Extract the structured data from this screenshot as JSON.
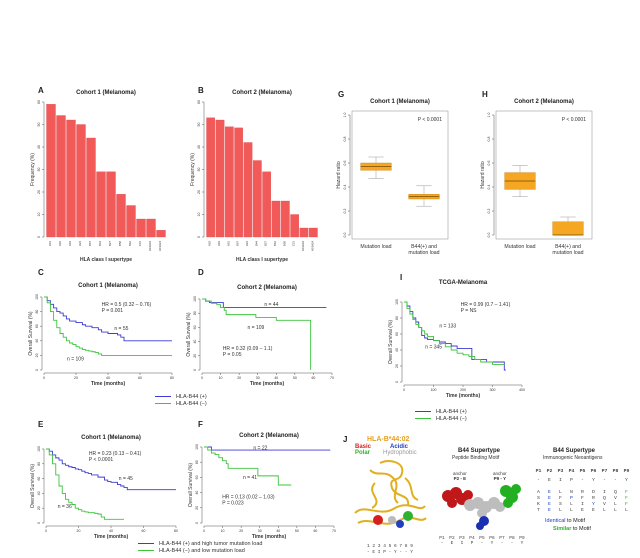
{
  "chart_data": [
    {
      "id": "A",
      "type": "bar",
      "title": "Cohort 1 (Melanoma)",
      "xlabel": "HLA class I supertype",
      "ylabel": "Frequency (%)",
      "ylim": [
        0,
        60
      ],
      "yticks": [
        0,
        10,
        20,
        30,
        40,
        50,
        60
      ],
      "categories": [
        "A01",
        "A02",
        "A03",
        "A24",
        "B07",
        "B44",
        "B27",
        "B58",
        "B62",
        "C01",
        "A01A03",
        "A01A24"
      ],
      "values": [
        59,
        54,
        52,
        50,
        44,
        29,
        29,
        19,
        14,
        8,
        8,
        3
      ],
      "color": "#f25a5a"
    },
    {
      "id": "B",
      "type": "bar",
      "title": "Cohort 2 (Melanoma)",
      "xlabel": "HLA class I supertype",
      "ylabel": "Frequency (%)",
      "ylim": [
        0,
        60
      ],
      "yticks": [
        0,
        10,
        20,
        30,
        40,
        50,
        60
      ],
      "categories": [
        "A02",
        "A03",
        "A01",
        "B07",
        "A24",
        "B44",
        "B27",
        "B62",
        "B58",
        "C01",
        "A01A03",
        "A01A24"
      ],
      "values": [
        53,
        52,
        49,
        48.5,
        42,
        34,
        29,
        16,
        16,
        10,
        4,
        4
      ],
      "color": "#f25a5a"
    },
    {
      "id": "G",
      "type": "box",
      "title": "Cohort 1 (Melanoma)",
      "ylabel": "Hazard ratio",
      "ylim": [
        0,
        1
      ],
      "yticks": [
        0,
        0.2,
        0.4,
        0.6,
        0.8,
        1.0
      ],
      "annotation": "P < 0.0001",
      "categories": [
        "Mutation load",
        "B44(+) and\nmutation load"
      ],
      "boxes": [
        {
          "min": 0.47,
          "q1": 0.54,
          "median": 0.57,
          "q3": 0.6,
          "max": 0.65
        },
        {
          "min": 0.24,
          "q1": 0.3,
          "median": 0.32,
          "q3": 0.34,
          "max": 0.41
        }
      ],
      "color": "#f5a623"
    },
    {
      "id": "H",
      "type": "box",
      "title": "Cohort 2 (Melanoma)",
      "ylabel": "Hazard ratio",
      "ylim": [
        0,
        1
      ],
      "yticks": [
        0,
        0.2,
        0.4,
        0.6,
        0.8,
        1.0
      ],
      "annotation": "P < 0.0001",
      "categories": [
        "Mutation load",
        "B44(+) and\nmutation load"
      ],
      "boxes": [
        {
          "min": 0.32,
          "q1": 0.38,
          "median": 0.45,
          "q3": 0.52,
          "max": 0.58
        },
        {
          "min": 0.0,
          "q1": 0.0,
          "median": 0.0,
          "q3": 0.11,
          "max": 0.15
        }
      ],
      "color": "#f5a623"
    },
    {
      "id": "C",
      "type": "line",
      "title": "Cohort 1 (Melanoma)",
      "xlabel": "Time (months)",
      "ylabel": "Overall Survival (%)",
      "xlim": [
        0,
        80
      ],
      "xticks": [
        0,
        20,
        40,
        60,
        80
      ],
      "ylim": [
        0,
        100
      ],
      "yticks": [
        0,
        20,
        40,
        60,
        80,
        100
      ],
      "annotations": [
        "HR = 0.5 (0.32 – 0.76)",
        "P = 0.001"
      ],
      "series": [
        {
          "name": "HLA-B44 (+)",
          "color": "#3b3bd6",
          "label": "n = 55",
          "x": [
            0,
            2,
            4,
            6,
            8,
            10,
            12,
            14,
            16,
            18,
            20,
            22,
            24,
            26,
            28,
            30,
            32,
            34,
            36,
            38,
            40,
            42,
            44,
            46,
            48,
            50,
            80
          ],
          "y": [
            100,
            95,
            90,
            85,
            80,
            78,
            74,
            70,
            67,
            67,
            65,
            65,
            62,
            60,
            60,
            58,
            58,
            55,
            52,
            52,
            50,
            50,
            50,
            48,
            45,
            40,
            40
          ]
        },
        {
          "name": "HLA-B44 (−)",
          "color": "#3ec43e",
          "label": "n = 109",
          "x": [
            0,
            2,
            4,
            6,
            8,
            10,
            12,
            14,
            16,
            18,
            20,
            22,
            24,
            26,
            28,
            30,
            32,
            34,
            36,
            80
          ],
          "y": [
            100,
            92,
            80,
            68,
            58,
            50,
            45,
            40,
            37,
            35,
            32,
            30,
            28,
            27,
            26,
            25,
            24,
            22,
            20,
            20
          ]
        }
      ]
    },
    {
      "id": "D",
      "type": "line",
      "title": "Cohort 2 (Melanoma)",
      "xlabel": "Time (months)",
      "ylabel": "Overall Survival (%)",
      "xlim": [
        0,
        70
      ],
      "xticks": [
        0,
        10,
        20,
        30,
        40,
        50,
        60,
        70
      ],
      "ylim": [
        0,
        100
      ],
      "yticks": [
        0,
        20,
        40,
        60,
        80,
        100
      ],
      "annotations": [
        "HR = 0.32 (0.09 – 1.1)",
        "P = 0.05"
      ],
      "series": [
        {
          "name": "HLA-B44 (+)",
          "color": "#3b3bd6",
          "label": "n = 44",
          "x": [
            0,
            2,
            4,
            11,
            11.5,
            67
          ],
          "y": [
            100,
            97,
            95,
            95,
            88,
            88
          ]
        },
        {
          "name": "HLA-B44 (−)",
          "color": "#3ec43e",
          "label": "n = 109",
          "x": [
            0,
            2,
            5,
            8,
            10,
            12,
            13,
            28,
            29,
            39,
            40,
            58,
            58.5
          ],
          "y": [
            100,
            97,
            94,
            92,
            88,
            84,
            78,
            78,
            74,
            74,
            70,
            70,
            0
          ]
        }
      ]
    },
    {
      "id": "I",
      "type": "line",
      "title": "TCGA-Melanoma",
      "xlabel": "Time (months)",
      "ylabel": "Overall Survival (%)",
      "xlim": [
        0,
        400
      ],
      "xticks": [
        0,
        100,
        200,
        300,
        400
      ],
      "ylim": [
        0,
        100
      ],
      "yticks": [
        0,
        20,
        40,
        60,
        80,
        100
      ],
      "annotations": [
        "HR = 0.99 (0.7 – 1.41)",
        "P = NS"
      ],
      "series": [
        {
          "name": "HLA-B44 (+)",
          "color": "#3b3bd6",
          "label": "n = 133",
          "x": [
            0,
            10,
            20,
            30,
            40,
            50,
            60,
            70,
            80,
            100,
            120,
            140,
            160,
            180,
            200,
            210,
            230,
            250,
            280,
            300,
            340,
            345
          ],
          "y": [
            100,
            95,
            88,
            80,
            75,
            68,
            58,
            55,
            53,
            52,
            50,
            48,
            45,
            42,
            42,
            42,
            28,
            28,
            25,
            25,
            15,
            15
          ]
        },
        {
          "name": "HLA-B44 (−)",
          "color": "#3ec43e",
          "label": "n = 345",
          "x": [
            0,
            10,
            20,
            30,
            40,
            50,
            60,
            70,
            80,
            100,
            120,
            140,
            160,
            180,
            200,
            220,
            240,
            260,
            300,
            340
          ],
          "y": [
            100,
            92,
            85,
            78,
            72,
            68,
            64,
            60,
            57,
            52,
            48,
            44,
            40,
            36,
            34,
            32,
            28,
            25,
            22,
            22
          ]
        }
      ]
    },
    {
      "id": "E",
      "type": "line",
      "title": "Cohort 1 (Melanoma)",
      "xlabel": "Time (months)",
      "ylabel": "Overall Survival (%)",
      "xlim": [
        0,
        80
      ],
      "xticks": [
        0,
        20,
        40,
        60,
        80
      ],
      "ylim": [
        0,
        100
      ],
      "yticks": [
        0,
        20,
        40,
        60,
        80,
        100
      ],
      "annotations": [
        "HR = 0.23 (0.13 – 0.41)",
        "P < 0.0001"
      ],
      "series": [
        {
          "name": "HLA-B44 (+) and high tumor mutation load",
          "color": "#3b3bd6",
          "label": "n = 45",
          "x": [
            0,
            2,
            4,
            6,
            8,
            10,
            12,
            14,
            16,
            18,
            20,
            22,
            24,
            26,
            28,
            30,
            32,
            34,
            36,
            38,
            40,
            42,
            44,
            46,
            48,
            50,
            80
          ],
          "y": [
            100,
            97,
            92,
            88,
            85,
            80,
            78,
            76,
            75,
            73,
            72,
            70,
            68,
            67,
            65,
            65,
            62,
            62,
            58,
            56,
            55,
            55,
            52,
            50,
            48,
            45,
            45
          ]
        },
        {
          "name": "HLA-B44 (−) and low mutation load",
          "color": "#3ec43e",
          "label": "n = 36",
          "x": [
            0,
            2,
            4,
            6,
            8,
            10,
            12,
            14,
            16,
            18,
            20,
            22,
            24,
            26,
            28,
            30,
            32,
            34,
            36,
            48
          ],
          "y": [
            100,
            92,
            80,
            65,
            50,
            40,
            32,
            28,
            25,
            20,
            18,
            16,
            15,
            14,
            14,
            13,
            12,
            8,
            5,
            5
          ]
        }
      ]
    },
    {
      "id": "F",
      "type": "line",
      "title": "Cohort 2 (Melanoma)",
      "xlabel": "Time (months)",
      "ylabel": "Overall Survival (%)",
      "xlim": [
        0,
        70
      ],
      "xticks": [
        0,
        10,
        20,
        30,
        40,
        50,
        60,
        70
      ],
      "ylim": [
        0,
        100
      ],
      "yticks": [
        0,
        20,
        40,
        60,
        80,
        100
      ],
      "annotations": [
        "HR = 0.13 (0.02 – 1.03)",
        "P = 0.023"
      ],
      "series": [
        {
          "name": "HLA-B44 (+) and high tumor mutation load",
          "color": "#3b3bd6",
          "label": "n = 22",
          "x": [
            0,
            3,
            4,
            68
          ],
          "y": [
            100,
            100,
            96,
            96
          ]
        },
        {
          "name": "HLA-B44 (−) and low mutation load",
          "color": "#3ec43e",
          "label": "n = 41",
          "x": [
            0,
            2,
            4,
            6,
            8,
            10,
            12,
            13,
            28,
            29,
            39,
            40,
            47
          ],
          "y": [
            100,
            96,
            92,
            90,
            86,
            82,
            78,
            72,
            72,
            62,
            62,
            50,
            50
          ]
        }
      ]
    }
  ],
  "panels": {
    "A": {
      "label": "A"
    },
    "B": {
      "label": "B"
    },
    "C": {
      "label": "C"
    },
    "D": {
      "label": "D"
    },
    "E": {
      "label": "E"
    },
    "F": {
      "label": "F"
    },
    "G": {
      "label": "G"
    },
    "H": {
      "label": "H"
    },
    "I": {
      "label": "I"
    },
    "J": {
      "label": "J"
    }
  },
  "legends": {
    "CD": [
      "HLA-B44 (+)",
      "HLA-B44 (−)"
    ],
    "I": [
      "HLA-B44 (+)",
      "HLA-B44 (−)"
    ],
    "EF": [
      "HLA-B44 (+) and high tumor mutation load",
      "HLA-B44 (−) and low mutation load"
    ]
  },
  "panelJ": {
    "structure_title": "HLA-B*44:02",
    "key": {
      "basic": "Basic",
      "acidic": "Acidic",
      "polar": "Polar",
      "hydrophobic": "Hydrophobic"
    },
    "structure_positions": "1 2 3 4 5 6 7 8 9",
    "structure_motif": "- E I P - Y - - Y",
    "motif_title": "B44 Supertype",
    "motif_subtitle": "Peptide Binding Motif",
    "anchor1": {
      "label": "anchor",
      "value": "P2 - E"
    },
    "anchor2": {
      "label": "anchor",
      "value": "P9 - Y"
    },
    "motif_positions": [
      "P1",
      "P2",
      "P3",
      "P4",
      "P5",
      "P6",
      "P7",
      "P8",
      "P9"
    ],
    "motif_residues": [
      "-",
      "E",
      "I",
      "P",
      "-",
      "Y",
      "-",
      "-",
      "Y"
    ],
    "neo_title": "B44 Supertype",
    "neo_subtitle": "Immunogenic Neoantigens",
    "neo_positions": [
      "P1",
      "P2",
      "P3",
      "P4",
      "P5",
      "P6",
      "P7",
      "P8",
      "P9"
    ],
    "neo_motif": [
      "-",
      "E",
      "I",
      "P",
      "-",
      "Y",
      "-",
      "-",
      "Y"
    ],
    "neo_rows": [
      [
        "A",
        "E",
        "L",
        "N",
        "R",
        "D",
        "I",
        "Q",
        "F"
      ],
      [
        "S",
        "E",
        "F",
        "P",
        "F",
        "R",
        "Q",
        "V",
        "F"
      ],
      [
        "K",
        "E",
        "S",
        "L",
        "I",
        "Y",
        "V",
        "L",
        "F"
      ],
      [
        "T",
        "E",
        "L",
        "L",
        "E",
        "E",
        "L",
        "L",
        "L"
      ]
    ],
    "identical_label": "Identical",
    "identical_suffix": " to Motif",
    "similar_label": "Similar",
    "similar_suffix": " to Motif",
    "colors": {
      "basic": "#d62020",
      "acidic": "#2040c0",
      "polar": "#30b030",
      "hydrophobic": "#999999",
      "title": "#e8a020"
    }
  }
}
